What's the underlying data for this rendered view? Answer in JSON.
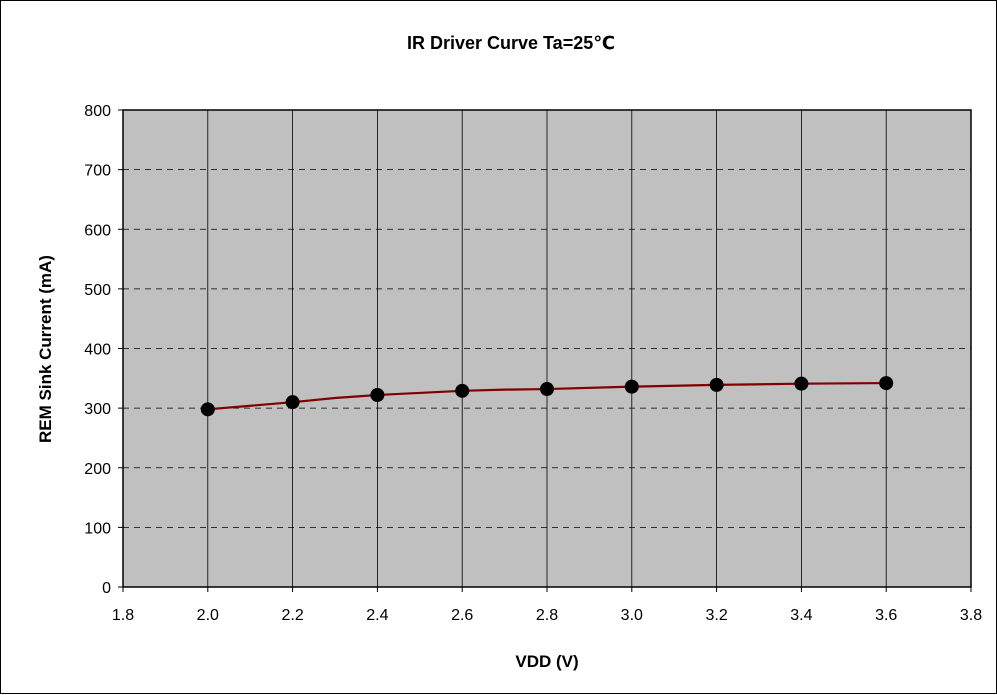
{
  "chart_data": {
    "type": "line",
    "title": "IR Driver Curve Ta=25℃",
    "xlabel": "VDD (V)",
    "ylabel": "REM Sink Current (mA)",
    "xlim": [
      1.8,
      3.8
    ],
    "ylim": [
      0,
      800
    ],
    "xticks": [
      "1.8",
      "2.0",
      "2.2",
      "2.4",
      "2.6",
      "2.8",
      "3.0",
      "3.2",
      "3.4",
      "3.6",
      "3.8"
    ],
    "yticks": [
      "0",
      "100",
      "200",
      "300",
      "400",
      "500",
      "600",
      "700",
      "800"
    ],
    "grid": true,
    "legend": "none",
    "plot_background": "#c0c0c0",
    "line_color": "#800000",
    "marker_color": "#000000",
    "series": [
      {
        "x": [
          2.0,
          2.2,
          2.3,
          2.4,
          2.6,
          2.7,
          2.8,
          3.0,
          3.2,
          3.4,
          3.6
        ],
        "y": [
          298,
          310,
          317,
          322,
          329,
          331,
          332,
          336,
          339,
          341,
          342
        ],
        "markers_at": [
          2.0,
          2.2,
          2.4,
          2.6,
          2.8,
          3.0,
          3.2,
          3.4,
          3.6
        ]
      }
    ]
  }
}
